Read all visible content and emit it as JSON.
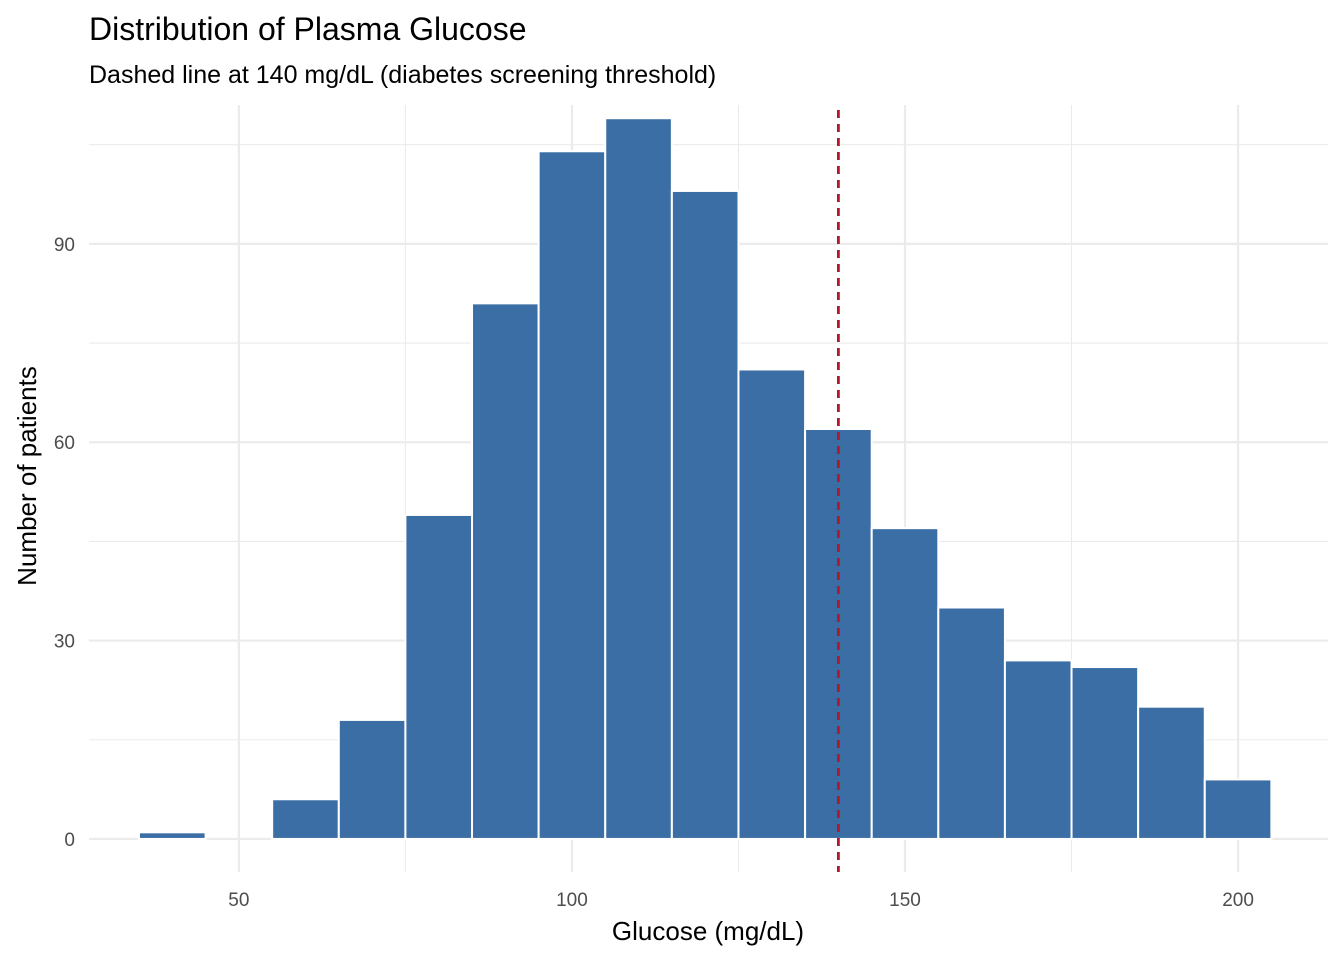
{
  "chart_data": {
    "type": "bar",
    "title": "Distribution of Plasma Glucose",
    "subtitle": "Dashed line at 140 mg/dL (diabetes screening threshold)",
    "xlabel": "Glucose (mg/dL)",
    "ylabel": "Number of patients",
    "xlim": [
      27.5,
      213.5
    ],
    "ylim": [
      -5,
      111
    ],
    "x_ticks": [
      50,
      100,
      150,
      200
    ],
    "x_tick_labels": [
      "50",
      "100",
      "150",
      "200"
    ],
    "y_ticks": [
      0,
      30,
      60,
      90
    ],
    "y_tick_labels": [
      "0",
      "30",
      "60",
      "90"
    ],
    "bin_width": 10,
    "bins": [
      {
        "center": 40,
        "count": 1
      },
      {
        "center": 50,
        "count": 0
      },
      {
        "center": 60,
        "count": 6
      },
      {
        "center": 70,
        "count": 18
      },
      {
        "center": 80,
        "count": 49
      },
      {
        "center": 90,
        "count": 81
      },
      {
        "center": 100,
        "count": 104
      },
      {
        "center": 110,
        "count": 109
      },
      {
        "center": 120,
        "count": 98
      },
      {
        "center": 130,
        "count": 71
      },
      {
        "center": 140,
        "count": 62
      },
      {
        "center": 150,
        "count": 47
      },
      {
        "center": 160,
        "count": 35
      },
      {
        "center": 170,
        "count": 27
      },
      {
        "center": 180,
        "count": 26
      },
      {
        "center": 190,
        "count": 20
      },
      {
        "center": 200,
        "count": 9
      }
    ],
    "reference_line": {
      "x": 140,
      "style": "dashed",
      "color": "#B2182B"
    },
    "bar_color": "#3A6EA5",
    "grid": true
  }
}
